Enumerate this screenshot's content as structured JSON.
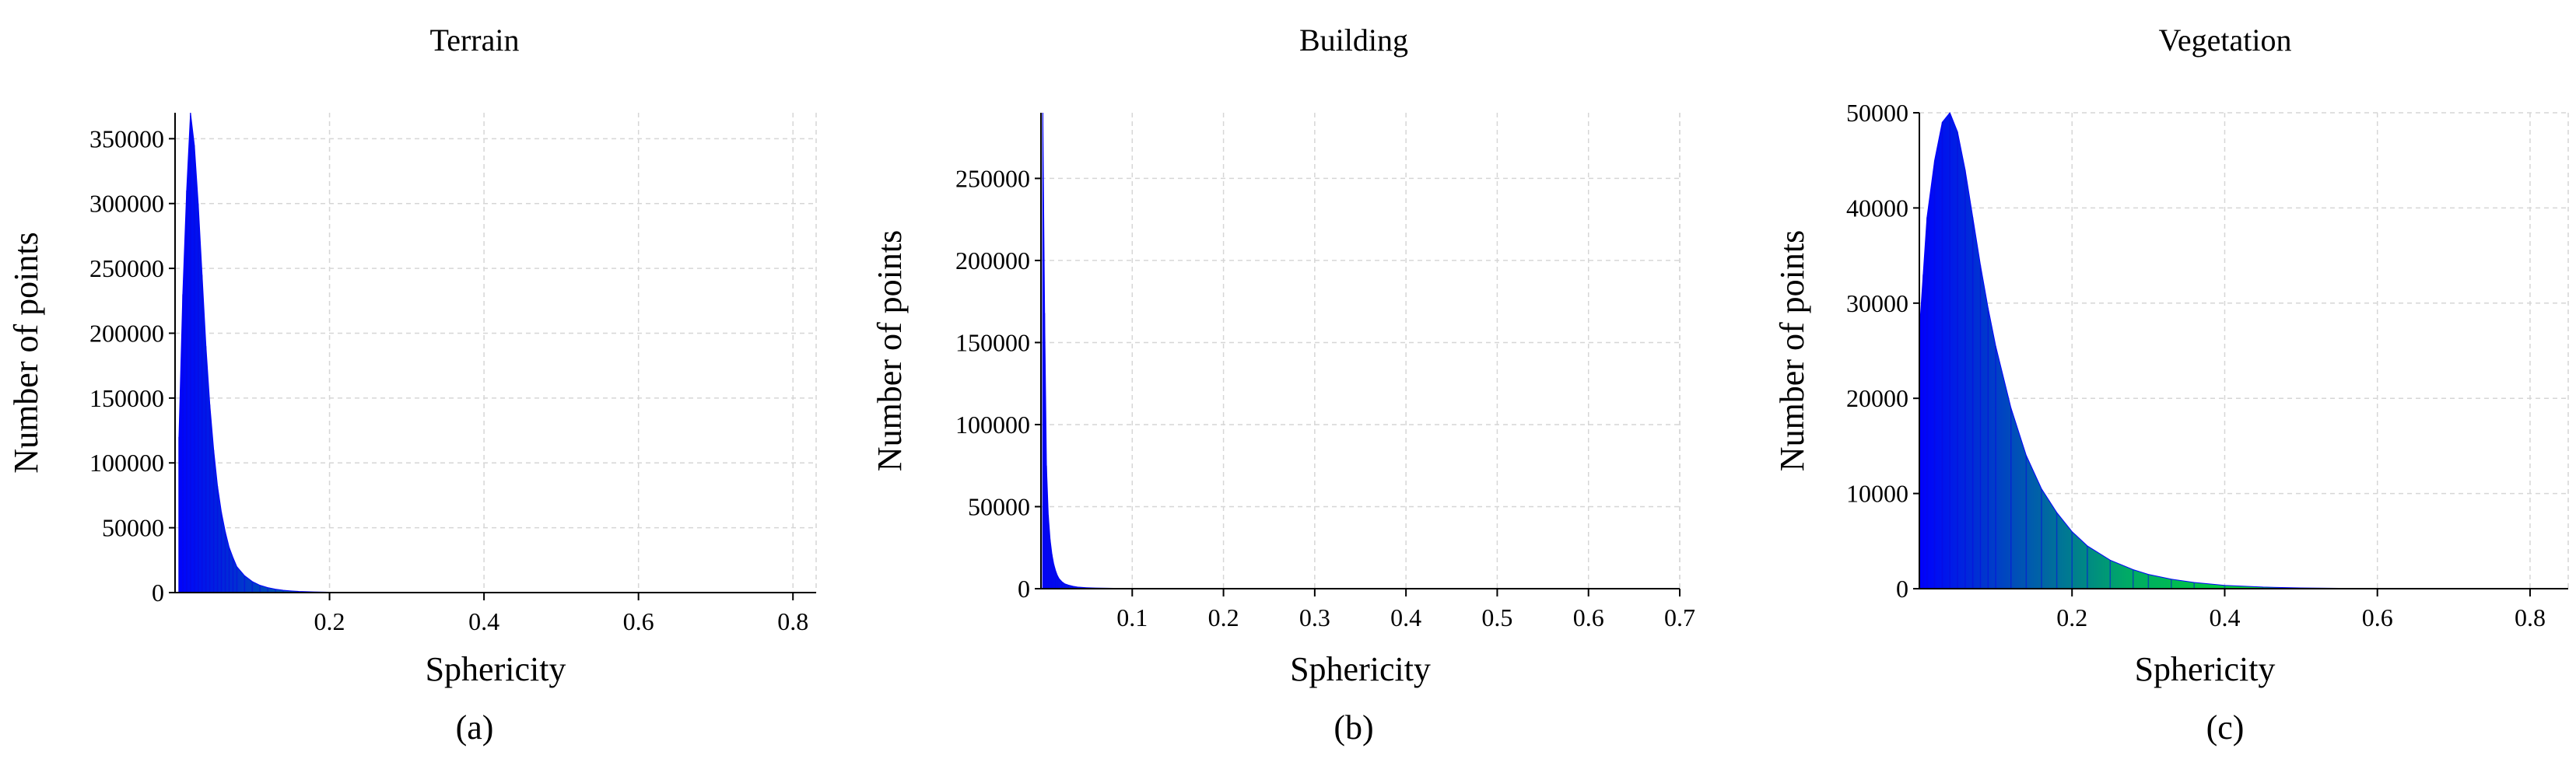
{
  "chart_data": [
    {
      "type": "histogram",
      "panel": "(a)",
      "title": "Terrain",
      "xlabel": "Sphericity",
      "ylabel": "Number of points",
      "xlim": [
        0.0,
        0.83
      ],
      "ylim": [
        0,
        370000
      ],
      "xticks": [
        0.2,
        0.4,
        0.6,
        0.8
      ],
      "yticks": [
        0,
        50000,
        100000,
        150000,
        200000,
        250000,
        300000,
        350000
      ],
      "grid": true,
      "colormap": [
        "#0000ff",
        "#00ff00"
      ],
      "x": [
        0.005,
        0.01,
        0.015,
        0.02,
        0.025,
        0.03,
        0.035,
        0.04,
        0.045,
        0.05,
        0.055,
        0.06,
        0.065,
        0.07,
        0.075,
        0.08,
        0.09,
        0.1,
        0.11,
        0.12,
        0.13,
        0.14,
        0.15,
        0.16,
        0.18,
        0.2,
        0.22,
        0.25,
        0.3,
        0.35,
        0.4
      ],
      "y": [
        120000,
        230000,
        310000,
        370000,
        345000,
        300000,
        245000,
        190000,
        145000,
        110000,
        82000,
        62000,
        47000,
        35000,
        27000,
        20000,
        13000,
        8500,
        5600,
        3800,
        2600,
        1800,
        1300,
        900,
        500,
        300,
        180,
        100,
        50,
        25,
        10
      ]
    },
    {
      "type": "histogram",
      "panel": "(b)",
      "title": "Building",
      "xlabel": "Sphericity",
      "ylabel": "Number of points",
      "xlim": [
        0.0,
        0.7
      ],
      "ylim": [
        0,
        290000
      ],
      "xticks": [
        0.1,
        0.2,
        0.3,
        0.4,
        0.5,
        0.6,
        0.7
      ],
      "yticks": [
        0,
        50000,
        100000,
        150000,
        200000,
        250000
      ],
      "grid": true,
      "colormap": [
        "#0000ff",
        "#00ff00"
      ],
      "x": [
        0.002,
        0.004,
        0.006,
        0.008,
        0.01,
        0.012,
        0.014,
        0.016,
        0.018,
        0.02,
        0.023,
        0.026,
        0.03,
        0.035,
        0.04,
        0.05,
        0.06,
        0.08,
        0.1,
        0.13,
        0.16,
        0.2
      ],
      "y": [
        290000,
        168000,
        75000,
        45000,
        30000,
        21000,
        15000,
        11000,
        8000,
        6000,
        4200,
        3000,
        2200,
        1500,
        1000,
        600,
        400,
        220,
        130,
        60,
        30,
        10
      ]
    },
    {
      "type": "histogram",
      "panel": "(c)",
      "title": "Vegetation",
      "xlabel": "Sphericity",
      "ylabel": "Number of points",
      "xlim": [
        0.0,
        0.85
      ],
      "ylim": [
        0,
        50000
      ],
      "xticks": [
        0.2,
        0.4,
        0.6,
        0.8
      ],
      "yticks": [
        0,
        10000,
        20000,
        30000,
        40000,
        50000
      ],
      "grid": true,
      "colormap": [
        "#0000ff",
        "#00ff00"
      ],
      "x": [
        0.0,
        0.005,
        0.01,
        0.02,
        0.03,
        0.04,
        0.05,
        0.06,
        0.07,
        0.08,
        0.09,
        0.1,
        0.12,
        0.14,
        0.16,
        0.18,
        0.2,
        0.22,
        0.25,
        0.28,
        0.3,
        0.33,
        0.36,
        0.4,
        0.45,
        0.5,
        0.55,
        0.6,
        0.7,
        0.8
      ],
      "y": [
        27000,
        33000,
        39000,
        45000,
        49000,
        50000,
        48000,
        44000,
        39000,
        34000,
        29500,
        25500,
        19000,
        14000,
        10500,
        8000,
        6000,
        4500,
        3000,
        2000,
        1500,
        1000,
        650,
        350,
        170,
        80,
        40,
        20,
        5,
        0
      ]
    }
  ]
}
